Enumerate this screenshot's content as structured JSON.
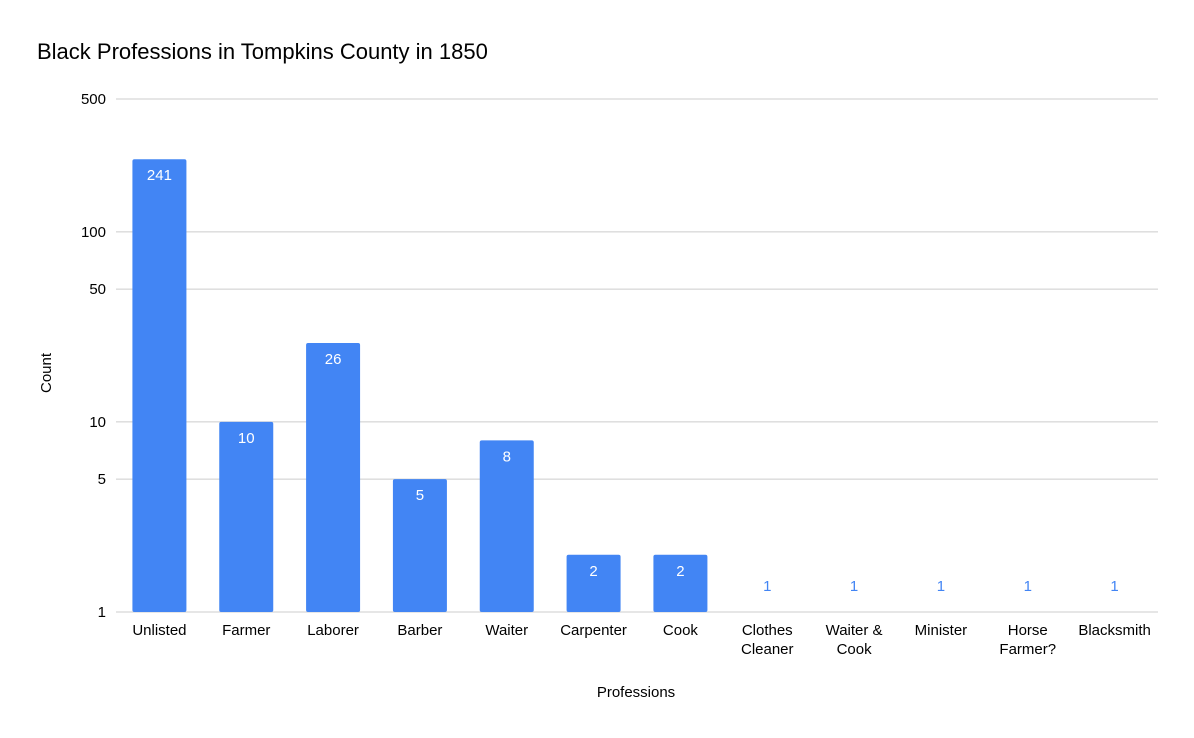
{
  "chart_data": {
    "type": "bar",
    "title": "Black Professions in Tompkins County in 1850",
    "xlabel": "Professions",
    "ylabel": "Count",
    "yscale": "log",
    "ylim": [
      1,
      500
    ],
    "yticks": [
      1,
      5,
      10,
      50,
      100,
      500
    ],
    "grid": true,
    "legend": "none",
    "bar_color": "#4285f4",
    "categories": [
      "Unlisted",
      "Farmer",
      "Laborer",
      "Barber",
      "Waiter",
      "Carpenter",
      "Cook",
      "Clothes Cleaner",
      "Waiter & Cook",
      "Minister",
      "Horse Farmer?",
      "Blacksmith"
    ],
    "category_lines": [
      [
        "Unlisted"
      ],
      [
        "Farmer"
      ],
      [
        "Laborer"
      ],
      [
        "Barber"
      ],
      [
        "Waiter"
      ],
      [
        "Carpenter"
      ],
      [
        "Cook"
      ],
      [
        "Clothes",
        "Cleaner"
      ],
      [
        "Waiter &",
        "Cook"
      ],
      [
        "Minister"
      ],
      [
        "Horse",
        "Farmer?"
      ],
      [
        "Blacksmith"
      ]
    ],
    "values": [
      241,
      10,
      26,
      5,
      8,
      2,
      2,
      1,
      1,
      1,
      1,
      1
    ]
  }
}
